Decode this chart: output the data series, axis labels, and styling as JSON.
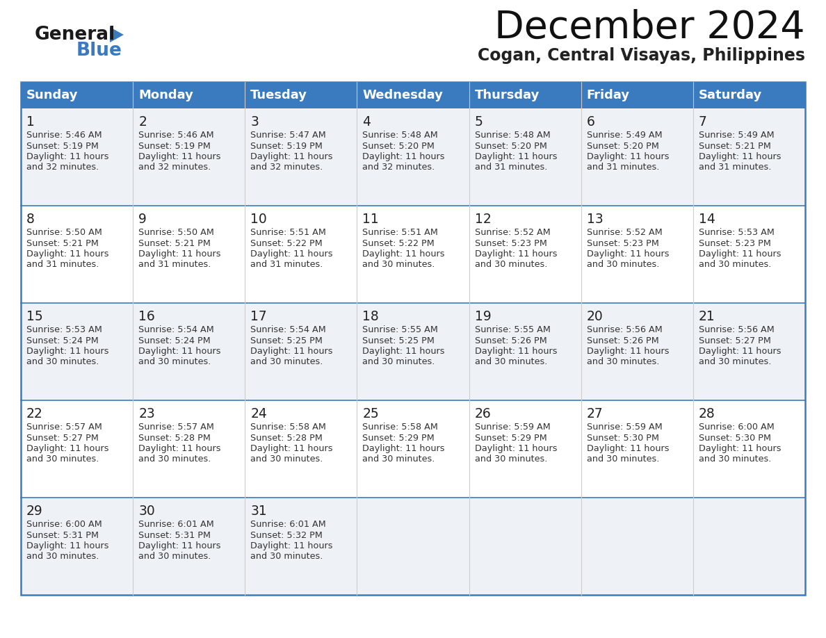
{
  "title": "December 2024",
  "subtitle": "Cogan, Central Visayas, Philippines",
  "header_color": "#3a7abf",
  "header_text_color": "#ffffff",
  "cell_bg_even": "#eef2f7",
  "cell_bg_odd": "#ffffff",
  "border_color": "#3a7abf",
  "row_divider_color": "#3a7abf",
  "col_divider_color": "#cccccc",
  "day_names": [
    "Sunday",
    "Monday",
    "Tuesday",
    "Wednesday",
    "Thursday",
    "Friday",
    "Saturday"
  ],
  "days": [
    {
      "day": 1,
      "col": 0,
      "row": 0,
      "sunrise": "5:46 AM",
      "sunset": "5:19 PM",
      "daylight": "11 hours and 32 minutes."
    },
    {
      "day": 2,
      "col": 1,
      "row": 0,
      "sunrise": "5:46 AM",
      "sunset": "5:19 PM",
      "daylight": "11 hours and 32 minutes."
    },
    {
      "day": 3,
      "col": 2,
      "row": 0,
      "sunrise": "5:47 AM",
      "sunset": "5:19 PM",
      "daylight": "11 hours and 32 minutes."
    },
    {
      "day": 4,
      "col": 3,
      "row": 0,
      "sunrise": "5:48 AM",
      "sunset": "5:20 PM",
      "daylight": "11 hours and 32 minutes."
    },
    {
      "day": 5,
      "col": 4,
      "row": 0,
      "sunrise": "5:48 AM",
      "sunset": "5:20 PM",
      "daylight": "11 hours and 31 minutes."
    },
    {
      "day": 6,
      "col": 5,
      "row": 0,
      "sunrise": "5:49 AM",
      "sunset": "5:20 PM",
      "daylight": "11 hours and 31 minutes."
    },
    {
      "day": 7,
      "col": 6,
      "row": 0,
      "sunrise": "5:49 AM",
      "sunset": "5:21 PM",
      "daylight": "11 hours and 31 minutes."
    },
    {
      "day": 8,
      "col": 0,
      "row": 1,
      "sunrise": "5:50 AM",
      "sunset": "5:21 PM",
      "daylight": "11 hours and 31 minutes."
    },
    {
      "day": 9,
      "col": 1,
      "row": 1,
      "sunrise": "5:50 AM",
      "sunset": "5:21 PM",
      "daylight": "11 hours and 31 minutes."
    },
    {
      "day": 10,
      "col": 2,
      "row": 1,
      "sunrise": "5:51 AM",
      "sunset": "5:22 PM",
      "daylight": "11 hours and 31 minutes."
    },
    {
      "day": 11,
      "col": 3,
      "row": 1,
      "sunrise": "5:51 AM",
      "sunset": "5:22 PM",
      "daylight": "11 hours and 30 minutes."
    },
    {
      "day": 12,
      "col": 4,
      "row": 1,
      "sunrise": "5:52 AM",
      "sunset": "5:23 PM",
      "daylight": "11 hours and 30 minutes."
    },
    {
      "day": 13,
      "col": 5,
      "row": 1,
      "sunrise": "5:52 AM",
      "sunset": "5:23 PM",
      "daylight": "11 hours and 30 minutes."
    },
    {
      "day": 14,
      "col": 6,
      "row": 1,
      "sunrise": "5:53 AM",
      "sunset": "5:23 PM",
      "daylight": "11 hours and 30 minutes."
    },
    {
      "day": 15,
      "col": 0,
      "row": 2,
      "sunrise": "5:53 AM",
      "sunset": "5:24 PM",
      "daylight": "11 hours and 30 minutes."
    },
    {
      "day": 16,
      "col": 1,
      "row": 2,
      "sunrise": "5:54 AM",
      "sunset": "5:24 PM",
      "daylight": "11 hours and 30 minutes."
    },
    {
      "day": 17,
      "col": 2,
      "row": 2,
      "sunrise": "5:54 AM",
      "sunset": "5:25 PM",
      "daylight": "11 hours and 30 minutes."
    },
    {
      "day": 18,
      "col": 3,
      "row": 2,
      "sunrise": "5:55 AM",
      "sunset": "5:25 PM",
      "daylight": "11 hours and 30 minutes."
    },
    {
      "day": 19,
      "col": 4,
      "row": 2,
      "sunrise": "5:55 AM",
      "sunset": "5:26 PM",
      "daylight": "11 hours and 30 minutes."
    },
    {
      "day": 20,
      "col": 5,
      "row": 2,
      "sunrise": "5:56 AM",
      "sunset": "5:26 PM",
      "daylight": "11 hours and 30 minutes."
    },
    {
      "day": 21,
      "col": 6,
      "row": 2,
      "sunrise": "5:56 AM",
      "sunset": "5:27 PM",
      "daylight": "11 hours and 30 minutes."
    },
    {
      "day": 22,
      "col": 0,
      "row": 3,
      "sunrise": "5:57 AM",
      "sunset": "5:27 PM",
      "daylight": "11 hours and 30 minutes."
    },
    {
      "day": 23,
      "col": 1,
      "row": 3,
      "sunrise": "5:57 AM",
      "sunset": "5:28 PM",
      "daylight": "11 hours and 30 minutes."
    },
    {
      "day": 24,
      "col": 2,
      "row": 3,
      "sunrise": "5:58 AM",
      "sunset": "5:28 PM",
      "daylight": "11 hours and 30 minutes."
    },
    {
      "day": 25,
      "col": 3,
      "row": 3,
      "sunrise": "5:58 AM",
      "sunset": "5:29 PM",
      "daylight": "11 hours and 30 minutes."
    },
    {
      "day": 26,
      "col": 4,
      "row": 3,
      "sunrise": "5:59 AM",
      "sunset": "5:29 PM",
      "daylight": "11 hours and 30 minutes."
    },
    {
      "day": 27,
      "col": 5,
      "row": 3,
      "sunrise": "5:59 AM",
      "sunset": "5:30 PM",
      "daylight": "11 hours and 30 minutes."
    },
    {
      "day": 28,
      "col": 6,
      "row": 3,
      "sunrise": "6:00 AM",
      "sunset": "5:30 PM",
      "daylight": "11 hours and 30 minutes."
    },
    {
      "day": 29,
      "col": 0,
      "row": 4,
      "sunrise": "6:00 AM",
      "sunset": "5:31 PM",
      "daylight": "11 hours and 30 minutes."
    },
    {
      "day": 30,
      "col": 1,
      "row": 4,
      "sunrise": "6:01 AM",
      "sunset": "5:31 PM",
      "daylight": "11 hours and 30 minutes."
    },
    {
      "day": 31,
      "col": 2,
      "row": 4,
      "sunrise": "6:01 AM",
      "sunset": "5:32 PM",
      "daylight": "11 hours and 30 minutes."
    }
  ],
  "num_rows": 5,
  "text_color": "#333333",
  "day_num_color": "#222222",
  "logo_general_color": "#1a1a1a",
  "logo_blue_color": "#3a7abf",
  "title_color": "#111111",
  "subtitle_color": "#222222"
}
